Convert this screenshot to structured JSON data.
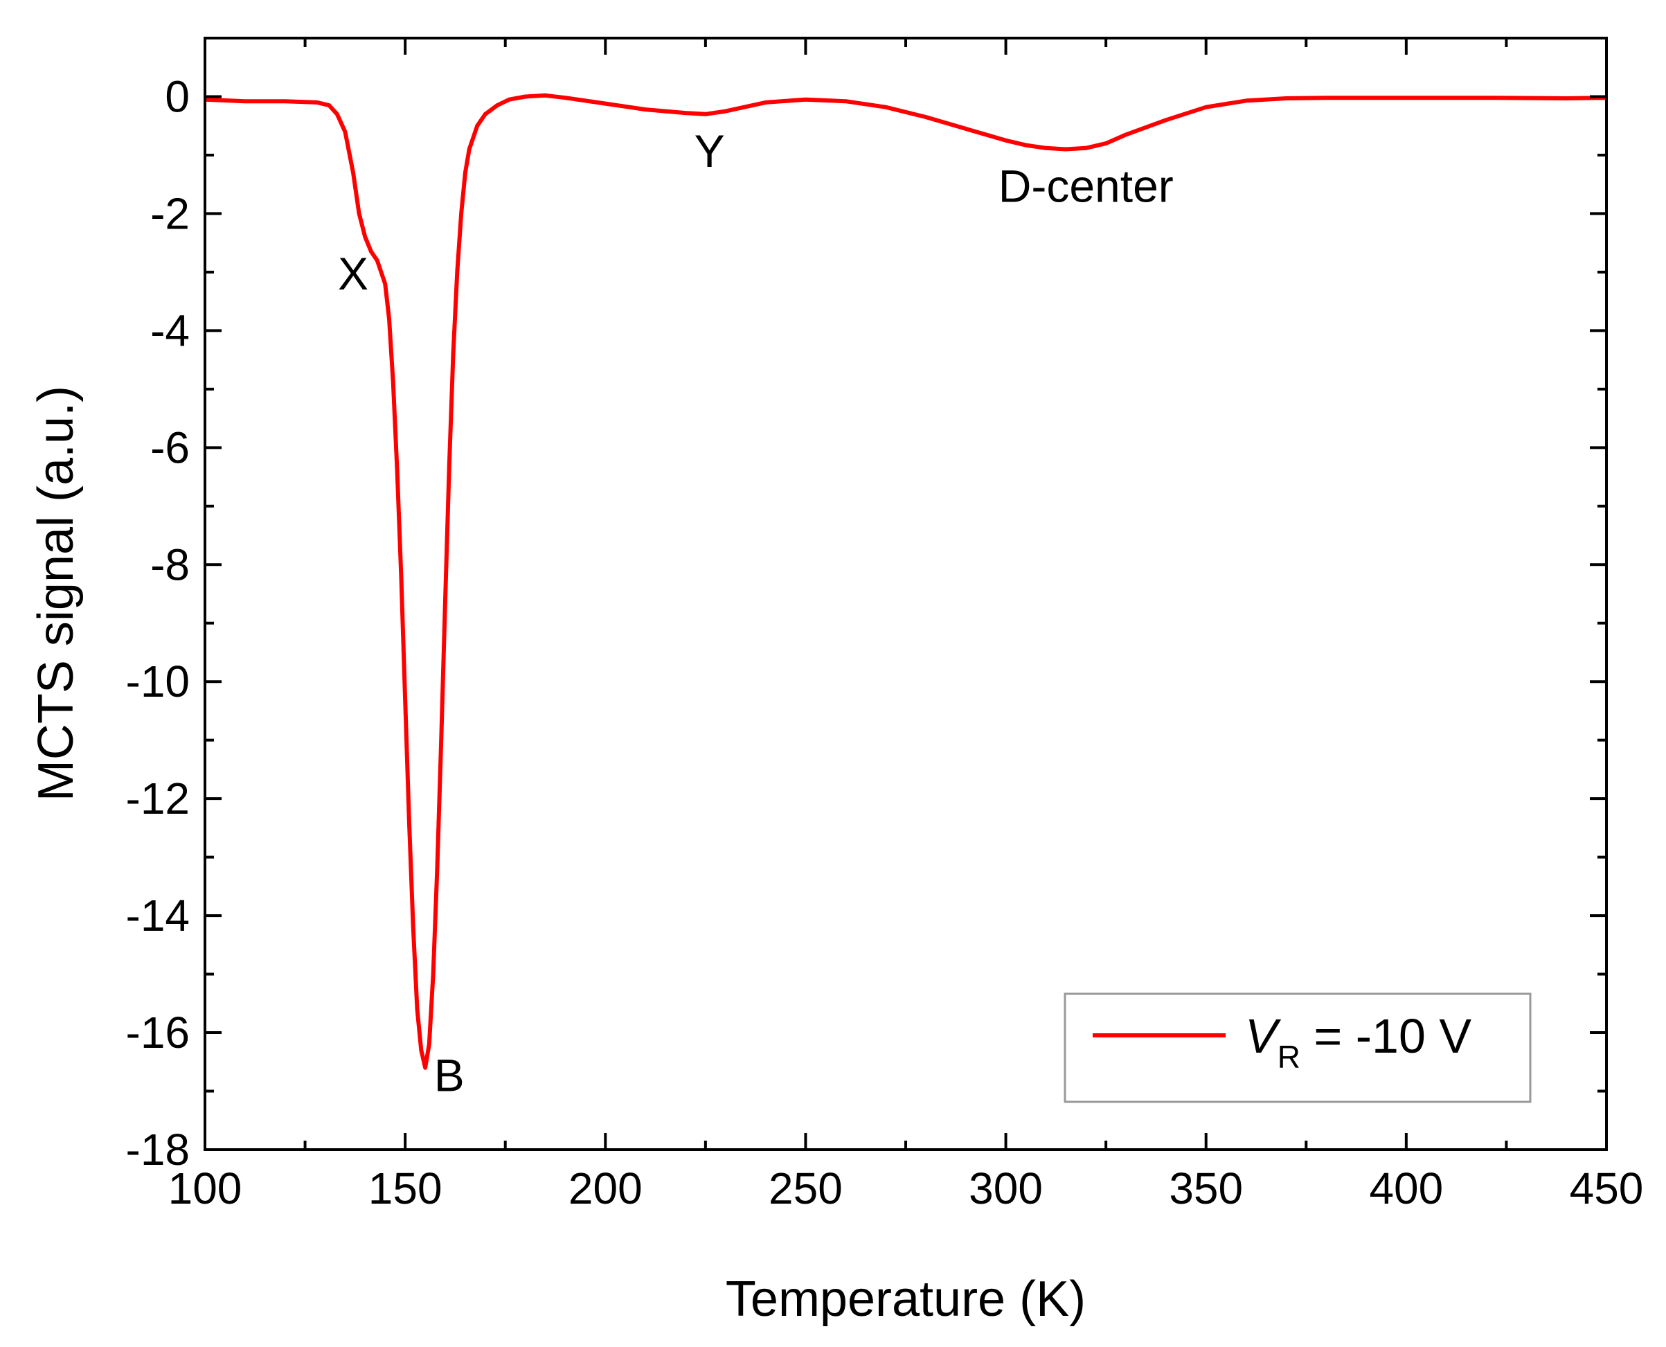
{
  "chart_data": {
    "type": "line",
    "xlabel": "Temperature (K)",
    "ylabel": "MCTS signal (a.u.)",
    "xlim": [
      100,
      450
    ],
    "ylim": [
      -18,
      1
    ],
    "x_ticks": [
      "100",
      "150",
      "200",
      "250",
      "300",
      "350",
      "400",
      "450"
    ],
    "y_ticks": [
      "0",
      "-2",
      "-4",
      "-6",
      "-8",
      "-10",
      "-12",
      "-14",
      "-16",
      "-18"
    ],
    "x_minor_step": 25,
    "y_minor_step": 1,
    "grid": false,
    "legend": {
      "position": "bottom-right",
      "label_prefix": "V",
      "label_subscript": "R",
      "label_suffix": " = -10 V"
    },
    "annotations": [
      {
        "text": "X",
        "x": 137,
        "y": -3.3
      },
      {
        "text": "B",
        "x": 161,
        "y": -17.0
      },
      {
        "text": "Y",
        "x": 226,
        "y": -1.2
      },
      {
        "text": "D-center",
        "x": 320,
        "y": -1.8
      }
    ],
    "series": [
      {
        "color": "#ff0000",
        "x": [
          100,
          110,
          120,
          128,
          131,
          133,
          135,
          137,
          138.5,
          140,
          141.5,
          143,
          145,
          146,
          147,
          148,
          149,
          150,
          151,
          152,
          153,
          154,
          155,
          156,
          157,
          158,
          159,
          160,
          161,
          162,
          163,
          164,
          165,
          166,
          168,
          170,
          173,
          176,
          180,
          185,
          190,
          200,
          210,
          220,
          225,
          230,
          240,
          250,
          260,
          270,
          280,
          290,
          300,
          305,
          310,
          315,
          320,
          325,
          330,
          340,
          350,
          360,
          370,
          380,
          400,
          420,
          440,
          450
        ],
        "y": [
          -0.05,
          -0.08,
          -0.08,
          -0.1,
          -0.15,
          -0.3,
          -0.6,
          -1.3,
          -2.0,
          -2.4,
          -2.65,
          -2.8,
          -3.2,
          -3.8,
          -4.9,
          -6.4,
          -8.2,
          -10.3,
          -12.4,
          -14.2,
          -15.6,
          -16.3,
          -16.6,
          -16.2,
          -15.0,
          -13.2,
          -11.0,
          -8.6,
          -6.3,
          -4.4,
          -3.0,
          -2.0,
          -1.3,
          -0.9,
          -0.5,
          -0.3,
          -0.15,
          -0.05,
          0.0,
          0.02,
          -0.02,
          -0.12,
          -0.22,
          -0.28,
          -0.3,
          -0.25,
          -0.1,
          -0.05,
          -0.08,
          -0.18,
          -0.35,
          -0.55,
          -0.75,
          -0.83,
          -0.88,
          -0.9,
          -0.88,
          -0.8,
          -0.65,
          -0.4,
          -0.18,
          -0.07,
          -0.03,
          -0.02,
          -0.02,
          -0.02,
          -0.03,
          -0.02
        ]
      }
    ]
  }
}
